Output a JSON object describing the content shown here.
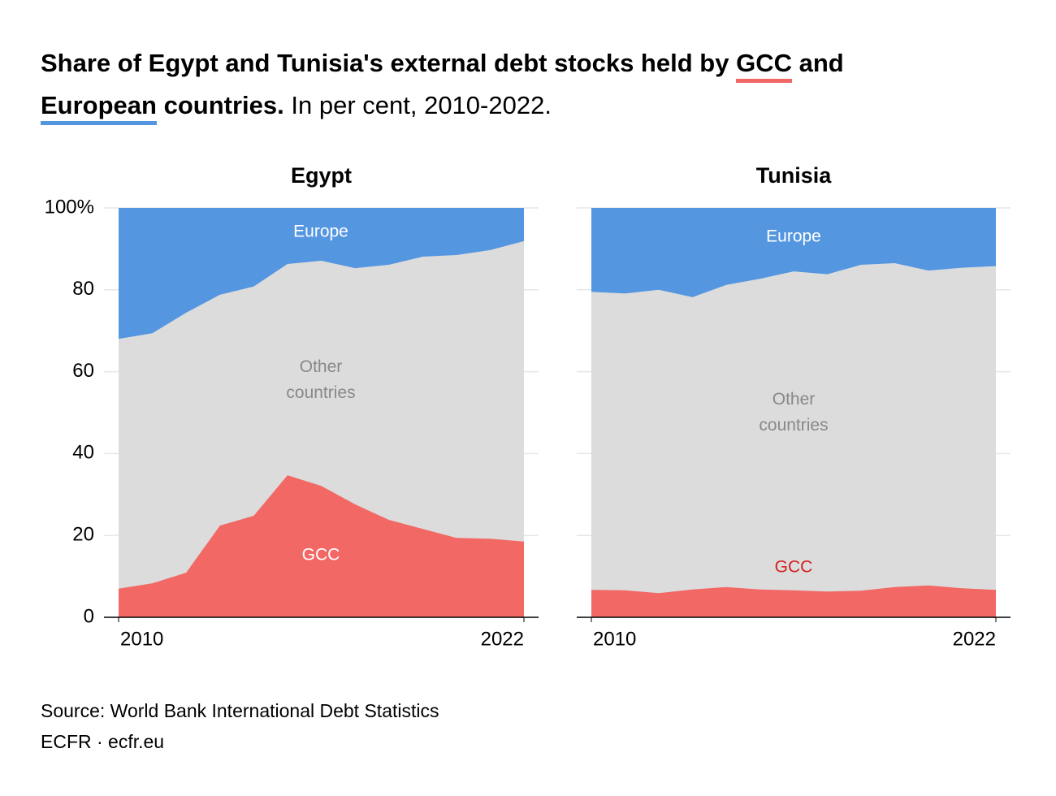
{
  "header": {
    "title": [
      "Share of Egypt and Tunisia's external debt stocks held by",
      "GCC",
      "and",
      "European",
      "countries.",
      "In per cent, 2010-2022."
    ]
  },
  "chart_data": [
    {
      "type": "area",
      "stacked": true,
      "title": "Egypt",
      "x": [
        2010,
        2011,
        2012,
        2013,
        2014,
        2015,
        2016,
        2017,
        2018,
        2019,
        2020,
        2021,
        2022
      ],
      "xlim": [
        2010,
        2022
      ],
      "xticks": [
        2010,
        2022
      ],
      "ylim": [
        0,
        100
      ],
      "yticks": [
        0,
        20,
        40,
        60,
        80,
        {
          "value": 100,
          "label": "100%"
        }
      ],
      "grid": true,
      "series": [
        {
          "name": "GCC",
          "color": "#f26865",
          "values": [
            7,
            8.3,
            10.9,
            22.4,
            24.8,
            34.7,
            32.1,
            27.6,
            23.8,
            21.6,
            19.4,
            19.2,
            18.5
          ]
        },
        {
          "name": "Other countries",
          "color": "#dcdcdc",
          "values": [
            61,
            61.1,
            63.5,
            56.4,
            56,
            51.6,
            55,
            57.7,
            62.3,
            66.5,
            69.1,
            70.5,
            73.4
          ]
        },
        {
          "name": "Europe",
          "color": "#5596e0",
          "values": [
            32,
            30.6,
            25.6,
            21.2,
            19.2,
            13.7,
            12.9,
            14.7,
            13.9,
            11.9,
            11.5,
            10.3,
            8.1
          ]
        }
      ]
    },
    {
      "type": "area",
      "stacked": true,
      "title": "Tunisia",
      "x": [
        2010,
        2011,
        2012,
        2013,
        2014,
        2015,
        2016,
        2017,
        2018,
        2019,
        2020,
        2021,
        2022
      ],
      "xlim": [
        2010,
        2022
      ],
      "xticks": [
        2010,
        2022
      ],
      "ylim": [
        0,
        100
      ],
      "grid": true,
      "series": [
        {
          "name": "GCC",
          "color": "#f26865",
          "values": [
            6.7,
            6.6,
            5.9,
            6.8,
            7.4,
            6.8,
            6.6,
            6.3,
            6.5,
            7.4,
            7.8,
            7.1,
            6.7
          ]
        },
        {
          "name": "Other countries",
          "color": "#dcdcdc",
          "values": [
            72.8,
            72.5,
            74.1,
            71.4,
            73.8,
            75.9,
            77.9,
            77.5,
            79.6,
            79.1,
            76.9,
            78.3,
            79.1
          ]
        },
        {
          "name": "Europe",
          "color": "#5596e0",
          "values": [
            20.5,
            20.9,
            20,
            21.8,
            18.8,
            17.3,
            15.5,
            16.2,
            13.9,
            13.5,
            15.3,
            14.6,
            14.2
          ]
        }
      ]
    }
  ],
  "footer": {
    "source": "Source: World Bank International Debt Statistics",
    "credit": "ECFR · ecfr.eu"
  }
}
